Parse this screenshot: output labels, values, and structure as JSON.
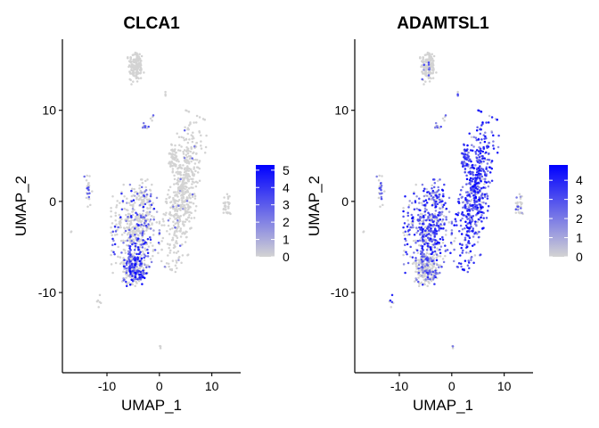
{
  "colors": {
    "low": "#d3d3d3",
    "high": "#0000ff"
  },
  "chart_data": [
    {
      "type": "scatter",
      "title": "CLCA1",
      "xlabel": "UMAP_1",
      "ylabel": "UMAP_2",
      "xlim": [
        -18.5,
        15.5
      ],
      "ylim": [
        -18.8,
        17.8
      ],
      "xticks": [
        -10,
        0,
        10
      ],
      "yticks": [
        -10,
        0,
        10
      ],
      "legend": {
        "position": "right",
        "min": 0,
        "max": 5.3,
        "ticks": [
          0,
          1,
          2,
          3,
          4,
          5
        ]
      },
      "gene": "CLCA1"
    },
    {
      "type": "scatter",
      "title": "ADAMTSL1",
      "xlabel": "UMAP_1",
      "ylabel": "UMAP_2",
      "xlim": [
        -18.5,
        15.5
      ],
      "ylim": [
        -18.8,
        17.8
      ],
      "xticks": [
        -10,
        0,
        10
      ],
      "yticks": [
        -10,
        0,
        10
      ],
      "legend": {
        "position": "right",
        "min": 0,
        "max": 4.8,
        "ticks": [
          0,
          1,
          2,
          3,
          4
        ]
      },
      "gene": "ADAMTSL1"
    }
  ]
}
